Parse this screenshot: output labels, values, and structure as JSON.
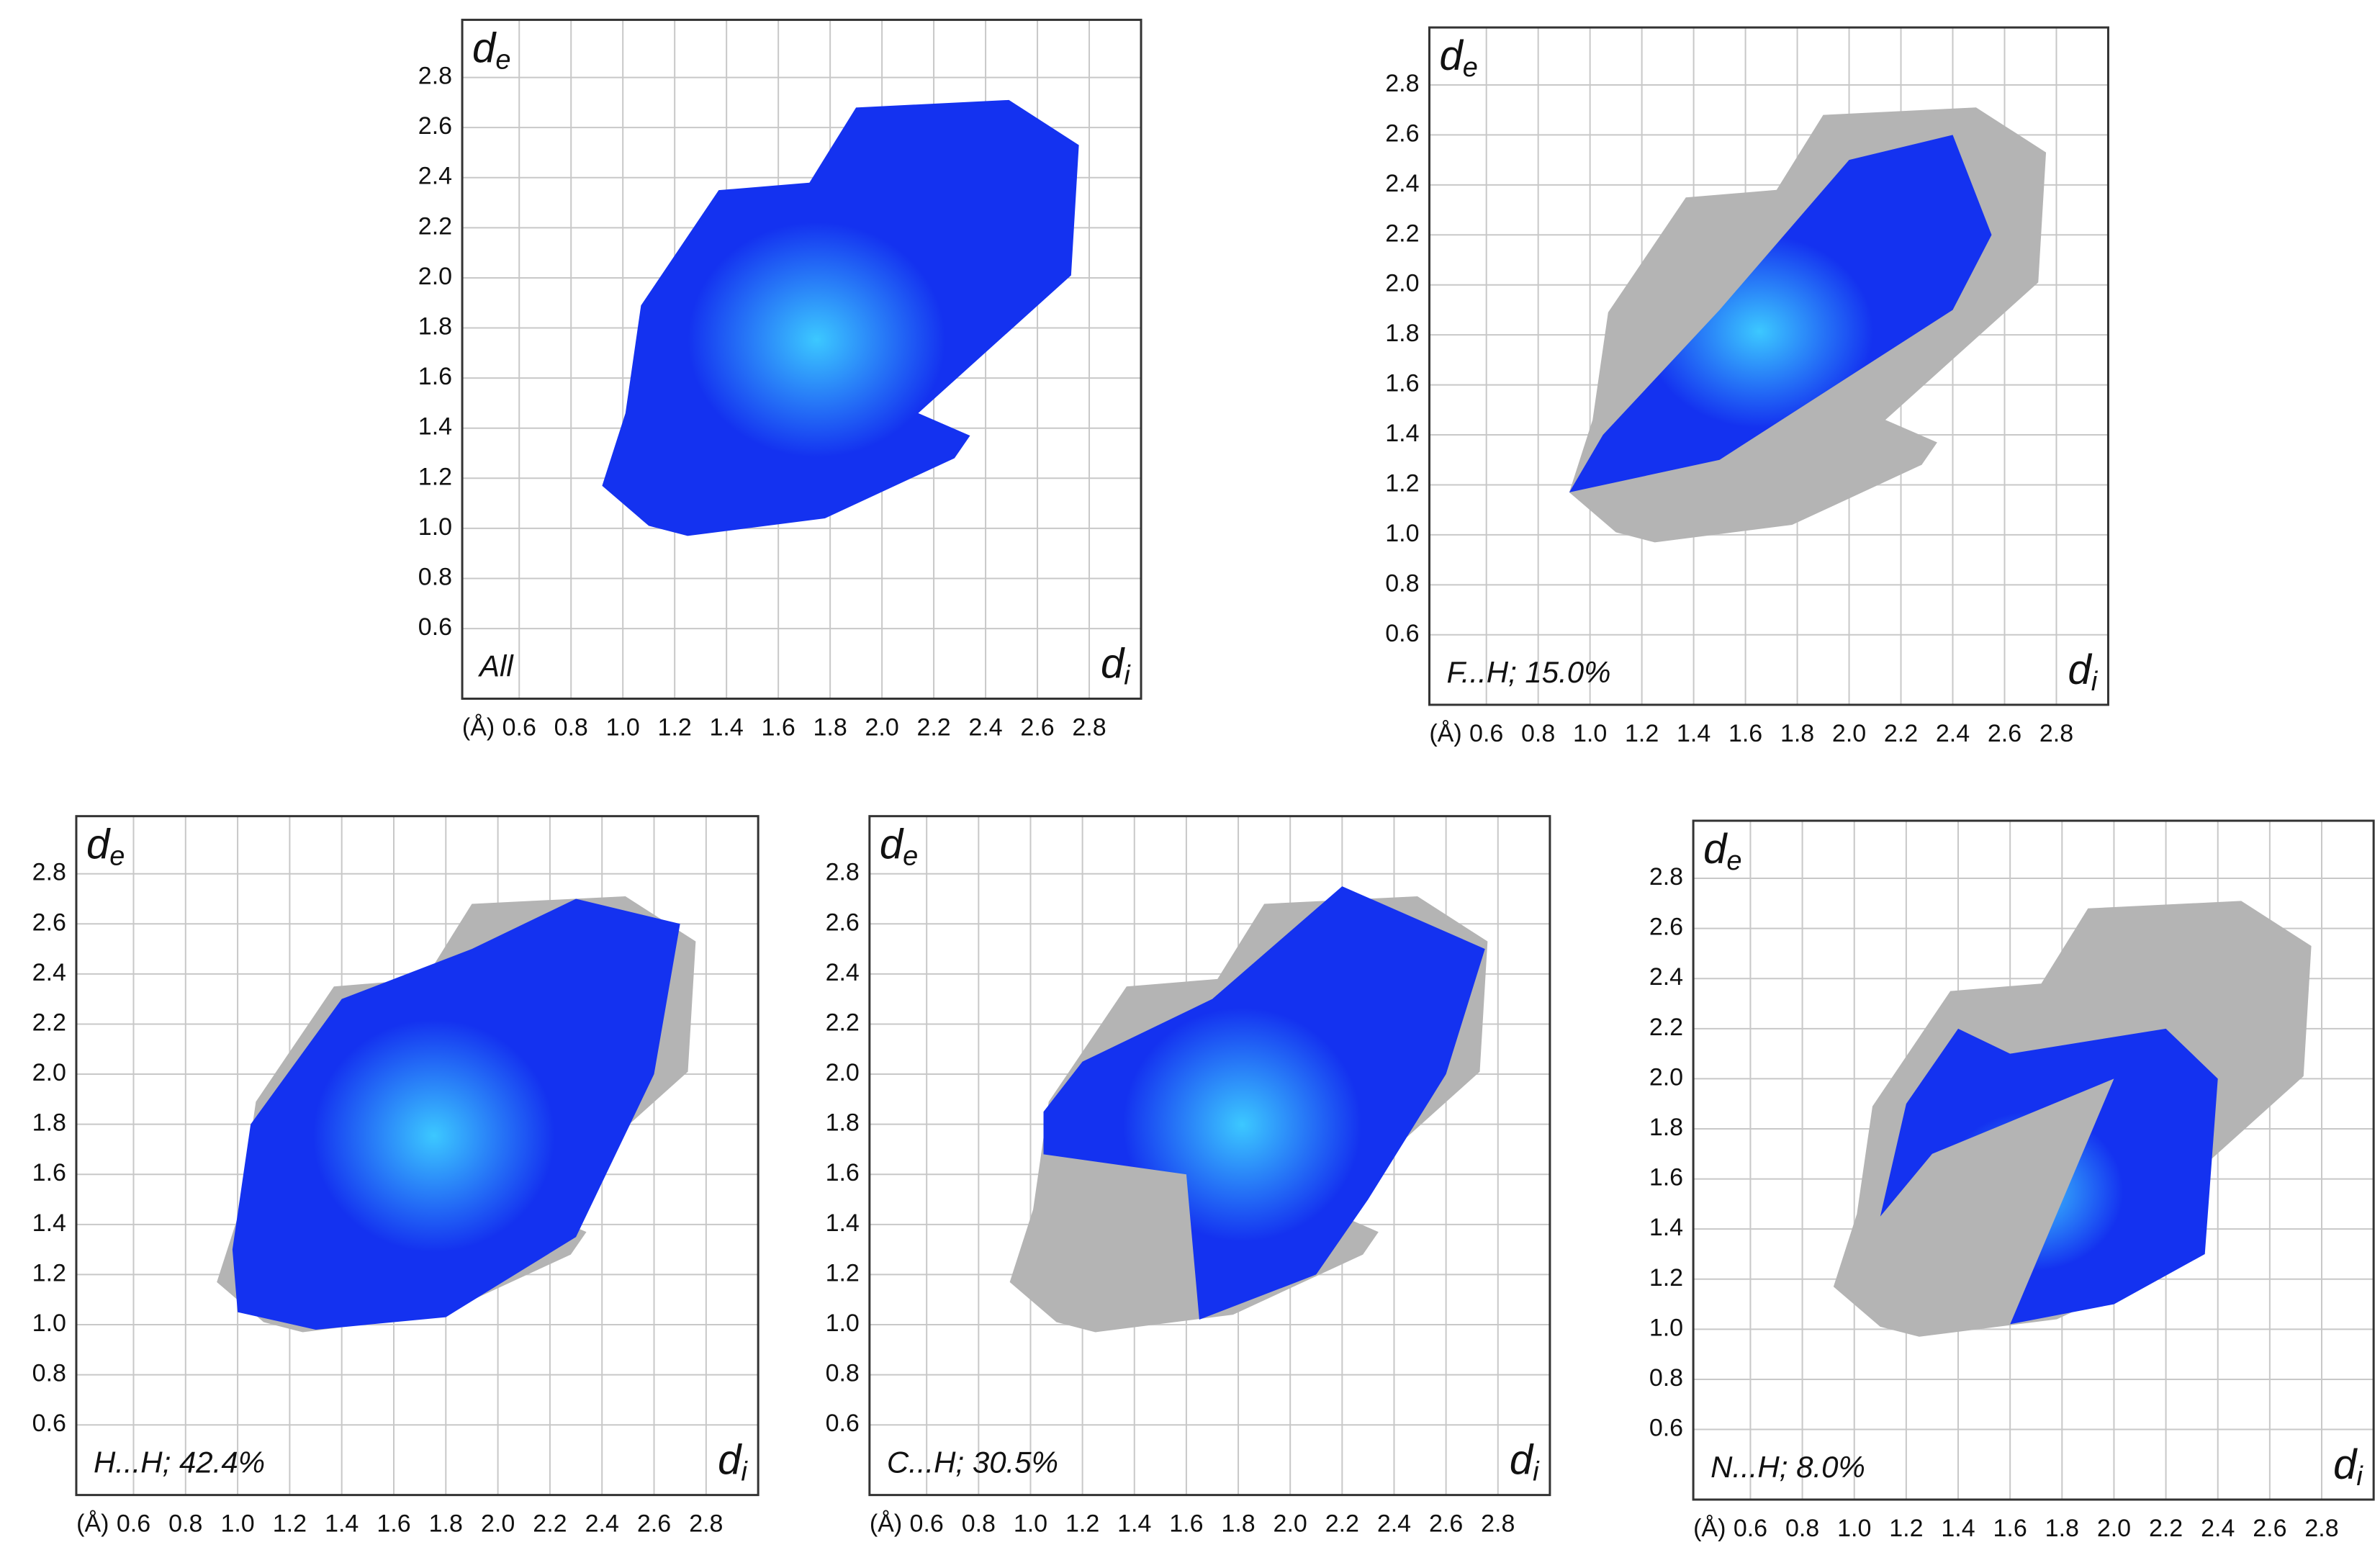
{
  "chart_data": [
    {
      "type": "scatter",
      "annotation": "All",
      "ylabel": "d",
      "ylabel_sub": "e",
      "xlabel": "d",
      "xlabel_sub": "i",
      "xunit": "(Å)",
      "xlim": [
        0.38,
        3.0
      ],
      "ylim": [
        0.32,
        3.03
      ],
      "grid": true,
      "color": "#1432f0",
      "xticks": [
        0.6,
        0.8,
        {
          "value": 1,
          "label": "1.0"
        },
        1.2,
        1.4,
        1.6,
        1.8,
        {
          "value": 2,
          "label": "2.0"
        },
        2.2,
        2.4,
        2.6,
        2.8
      ],
      "yticks": [
        0.6,
        0.8,
        {
          "value": 1,
          "label": "1.0"
        },
        1.2,
        1.4,
        1.6,
        1.8,
        {
          "value": 2,
          "label": "2.0"
        },
        2.2,
        2.4,
        2.6,
        2.8
      ]
    },
    {
      "type": "scatter",
      "annotation": "F...H; 15.0%",
      "ylabel": "d",
      "ylabel_sub": "e",
      "xlabel": "d",
      "xlabel_sub": "i",
      "xunit": "(Å)",
      "xlim": [
        0.38,
        3.0
      ],
      "ylim": [
        0.32,
        3.03
      ],
      "grid": true,
      "color": "#1432f0",
      "background_color": "#b4b4b4",
      "xticks": [
        0.6,
        0.8,
        {
          "value": 1,
          "label": "1.0"
        },
        1.2,
        1.4,
        1.6,
        1.8,
        {
          "value": 2,
          "label": "2.0"
        },
        2.2,
        2.4,
        2.6,
        2.8
      ],
      "yticks": [
        0.6,
        0.8,
        {
          "value": 1,
          "label": "1.0"
        },
        1.2,
        1.4,
        1.6,
        1.8,
        {
          "value": 2,
          "label": "2.0"
        },
        2.2,
        2.4,
        2.6,
        2.8
      ]
    },
    {
      "type": "scatter",
      "annotation": "H...H; 42.4%",
      "ylabel": "d",
      "ylabel_sub": "e",
      "xlabel": "d",
      "xlabel_sub": "i",
      "xunit": "(Å)",
      "xlim": [
        0.38,
        3.0
      ],
      "ylim": [
        0.32,
        3.03
      ],
      "grid": true,
      "color": "#1432f0",
      "background_color": "#b4b4b4",
      "xticks": [
        0.6,
        0.8,
        {
          "value": 1,
          "label": "1.0"
        },
        1.2,
        1.4,
        1.6,
        1.8,
        {
          "value": 2,
          "label": "2.0"
        },
        2.2,
        2.4,
        2.6,
        2.8
      ],
      "yticks": [
        0.6,
        0.8,
        {
          "value": 1,
          "label": "1.0"
        },
        1.2,
        1.4,
        1.6,
        1.8,
        {
          "value": 2,
          "label": "2.0"
        },
        2.2,
        2.4,
        2.6,
        2.8
      ]
    },
    {
      "type": "scatter",
      "annotation": "C...H; 30.5%",
      "ylabel": "d",
      "ylabel_sub": "e",
      "xlabel": "d",
      "xlabel_sub": "i",
      "xunit": "(Å)",
      "xlim": [
        0.38,
        3.0
      ],
      "ylim": [
        0.32,
        3.03
      ],
      "grid": true,
      "color": "#1432f0",
      "background_color": "#b4b4b4",
      "xticks": [
        0.6,
        0.8,
        {
          "value": 1,
          "label": "1.0"
        },
        1.2,
        1.4,
        1.6,
        1.8,
        {
          "value": 2,
          "label": "2.0"
        },
        2.2,
        2.4,
        2.6,
        2.8
      ],
      "yticks": [
        0.6,
        0.8,
        {
          "value": 1,
          "label": "1.0"
        },
        1.2,
        1.4,
        1.6,
        1.8,
        {
          "value": 2,
          "label": "2.0"
        },
        2.2,
        2.4,
        2.6,
        2.8
      ]
    },
    {
      "type": "scatter",
      "annotation": "N...H; 8.0%",
      "ylabel": "d",
      "ylabel_sub": "e",
      "xlabel": "d",
      "xlabel_sub": "i",
      "xunit": "(Å)",
      "xlim": [
        0.38,
        3.0
      ],
      "ylim": [
        0.32,
        3.03
      ],
      "grid": true,
      "color": "#1432f0",
      "background_color": "#b4b4b4",
      "xticks": [
        0.6,
        0.8,
        {
          "value": 1,
          "label": "1.0"
        },
        1.2,
        1.4,
        1.6,
        1.8,
        {
          "value": 2,
          "label": "2.0"
        },
        2.2,
        2.4,
        2.6,
        2.8
      ],
      "yticks": [
        0.6,
        0.8,
        {
          "value": 1,
          "label": "1.0"
        },
        1.2,
        1.4,
        1.6,
        1.8,
        {
          "value": 2,
          "label": "2.0"
        },
        2.2,
        2.4,
        2.6,
        2.8
      ]
    }
  ]
}
